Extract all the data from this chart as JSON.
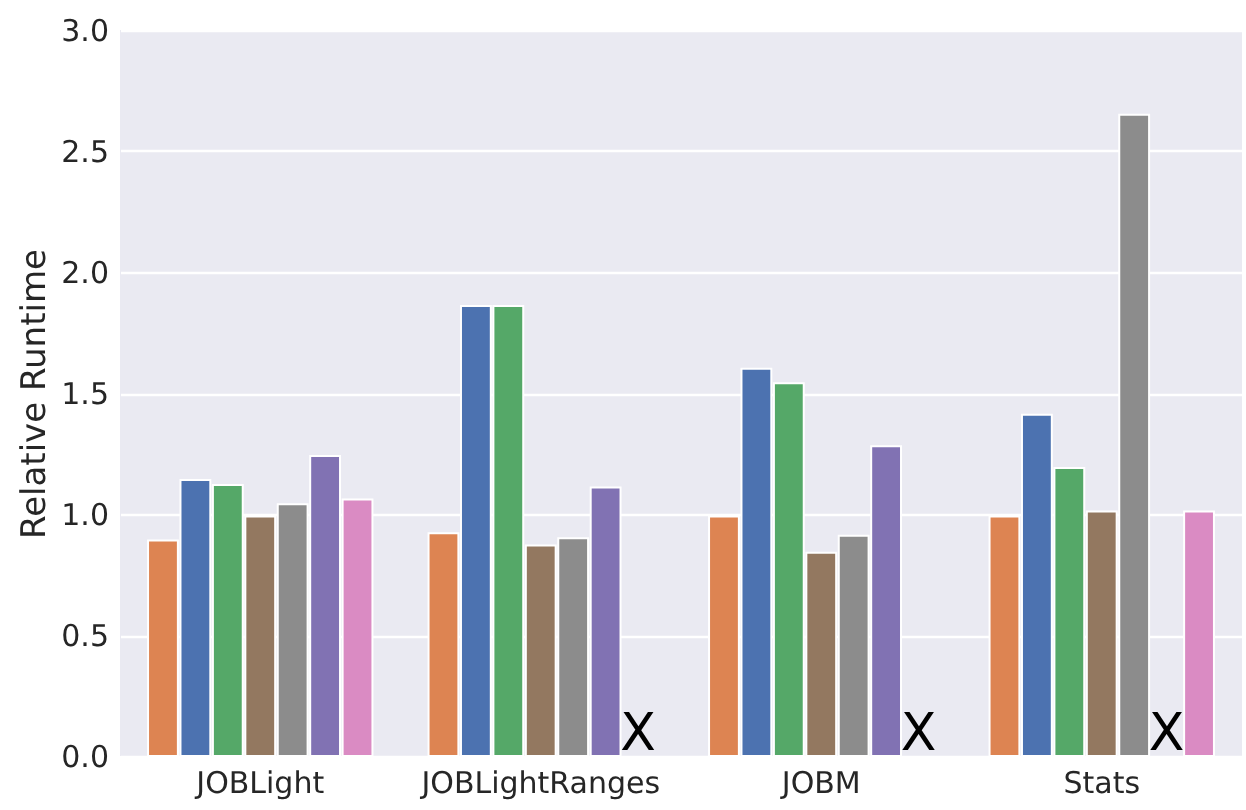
{
  "chart_data": {
    "type": "bar",
    "ylabel": "Relative Runtime",
    "categories": [
      "JOBLight",
      "JOBLightRanges",
      "JOBM",
      "Stats"
    ],
    "series": [
      {
        "color": "#dd8452",
        "values": [
          0.89,
          0.92,
          0.99,
          0.99
        ]
      },
      {
        "color": "#4c72b0",
        "values": [
          1.14,
          1.86,
          1.6,
          1.41
        ]
      },
      {
        "color": "#55a868",
        "values": [
          1.12,
          1.86,
          1.54,
          1.19
        ]
      },
      {
        "color": "#937860",
        "values": [
          0.99,
          0.87,
          0.84,
          1.01
        ]
      },
      {
        "color": "#8c8c8c",
        "values": [
          1.04,
          0.9,
          0.91,
          2.65
        ]
      },
      {
        "color": "#8172b3",
        "values": [
          1.24,
          1.11,
          1.28,
          null
        ]
      },
      {
        "color": "#da8bc3",
        "values": [
          1.06,
          null,
          null,
          1.01
        ]
      }
    ],
    "ylim": [
      0,
      3.0
    ],
    "yticks": [
      {
        "value": 0,
        "label": "0.0"
      },
      {
        "value": 0.5,
        "label": "0.5"
      },
      {
        "value": 1,
        "label": "1.0"
      },
      {
        "value": 1.5,
        "label": "1.5"
      },
      {
        "value": 2,
        "label": "2.0"
      },
      {
        "value": 2.5,
        "label": "2.5"
      },
      {
        "value": 3,
        "label": "3.0"
      }
    ],
    "grid": "y",
    "annotations": [
      {
        "text": "X",
        "x": "JOBLightRanges",
        "y": 0
      },
      {
        "text": "X",
        "x": "JOBM",
        "y": 0
      },
      {
        "text": "X",
        "x": "Stats",
        "y": 0
      }
    ]
  }
}
